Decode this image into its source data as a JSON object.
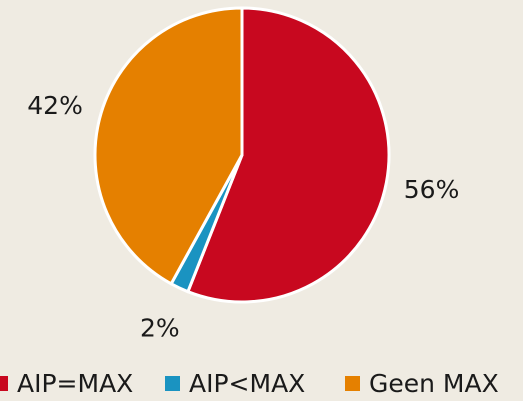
{
  "chart_data": {
    "type": "pie",
    "categories": [
      "AIP=MAX",
      "AIP<MAX",
      "Geen MAX"
    ],
    "values": [
      56,
      2,
      42
    ],
    "value_labels": [
      "56%",
      "2%",
      "42%"
    ],
    "colors": [
      "#c8081f",
      "#1a93c1",
      "#e58000"
    ],
    "legend": "bottom"
  }
}
